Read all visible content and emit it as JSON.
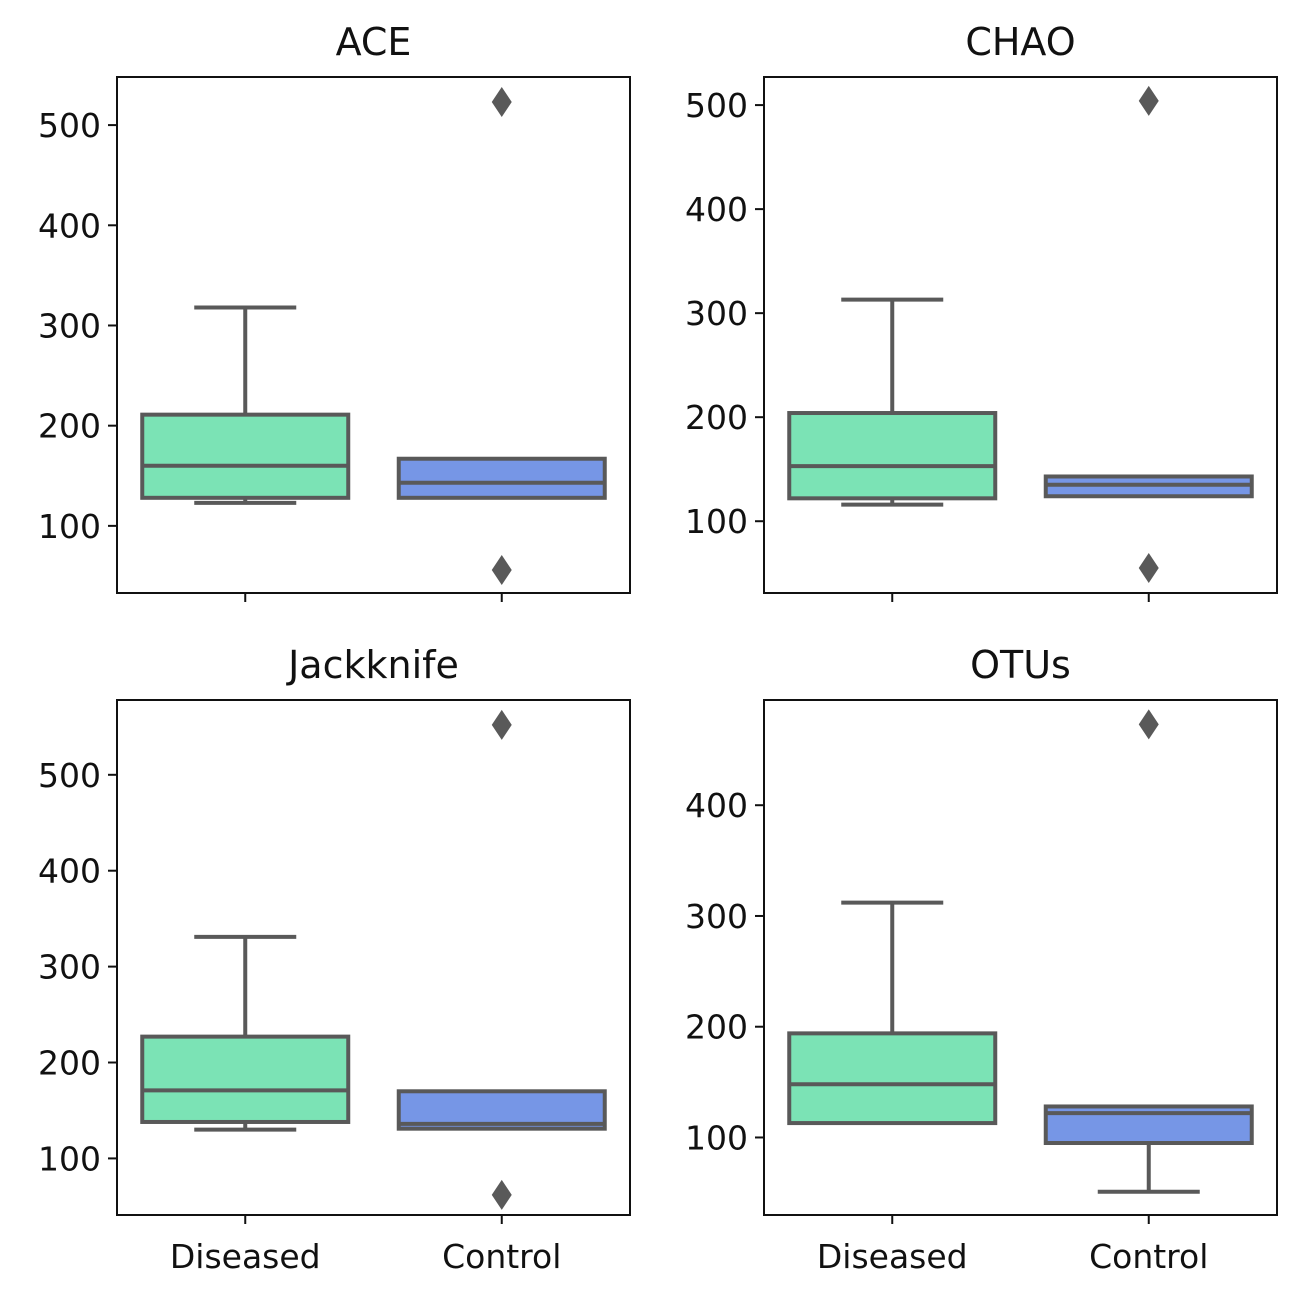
{
  "colors": {
    "diseased": "#7be3b5",
    "control": "#7696e6",
    "outline": "#595959",
    "axis": "#111111"
  },
  "chart_data": [
    {
      "type": "box",
      "title": "ACE",
      "categories": [
        "Diseased",
        "Control"
      ],
      "xlabel": "",
      "ylabel": "",
      "ylim": [
        33,
        548
      ],
      "yticks": [
        100,
        200,
        300,
        400,
        500
      ],
      "show_category_labels": false,
      "boxes": [
        {
          "category": "Diseased",
          "whisker_low": 123,
          "q1": 128,
          "median": 160,
          "q3": 211,
          "whisker_high": 318,
          "outliers": []
        },
        {
          "category": "Control",
          "whisker_low": 128,
          "q1": 128,
          "median": 143,
          "q3": 167,
          "whisker_high": 167,
          "outliers": [
            523,
            56
          ]
        }
      ]
    },
    {
      "type": "box",
      "title": "CHAO",
      "categories": [
        "Diseased",
        "Control"
      ],
      "xlabel": "",
      "ylabel": "",
      "ylim": [
        31,
        527
      ],
      "yticks": [
        100,
        200,
        300,
        400,
        500
      ],
      "show_category_labels": false,
      "boxes": [
        {
          "category": "Diseased",
          "whisker_low": 116,
          "q1": 122,
          "median": 153,
          "q3": 204,
          "whisker_high": 313,
          "outliers": []
        },
        {
          "category": "Control",
          "whisker_low": 124,
          "q1": 124,
          "median": 135,
          "q3": 143,
          "whisker_high": 143,
          "outliers": [
            504,
            55
          ]
        }
      ]
    },
    {
      "type": "box",
      "title": "Jackknife",
      "categories": [
        "Diseased",
        "Control"
      ],
      "xlabel": "",
      "ylabel": "",
      "ylim": [
        41,
        578
      ],
      "yticks": [
        100,
        200,
        300,
        400,
        500
      ],
      "show_category_labels": true,
      "boxes": [
        {
          "category": "Diseased",
          "whisker_low": 130,
          "q1": 138,
          "median": 171,
          "q3": 227,
          "whisker_high": 331,
          "outliers": []
        },
        {
          "category": "Control",
          "whisker_low": 131,
          "q1": 131,
          "median": 136,
          "q3": 170,
          "whisker_high": 170,
          "outliers": [
            552,
            62
          ]
        }
      ]
    },
    {
      "type": "box",
      "title": "OTUs",
      "categories": [
        "Diseased",
        "Control"
      ],
      "xlabel": "",
      "ylabel": "",
      "ylim": [
        30,
        495
      ],
      "yticks": [
        100,
        200,
        300,
        400
      ],
      "show_category_labels": true,
      "boxes": [
        {
          "category": "Diseased",
          "whisker_low": 113,
          "q1": 113,
          "median": 148,
          "q3": 194,
          "whisker_high": 312,
          "outliers": []
        },
        {
          "category": "Control",
          "whisker_low": 51,
          "q1": 95,
          "median": 122,
          "q3": 128,
          "whisker_high": 128,
          "outliers": [
            473
          ]
        }
      ]
    }
  ]
}
